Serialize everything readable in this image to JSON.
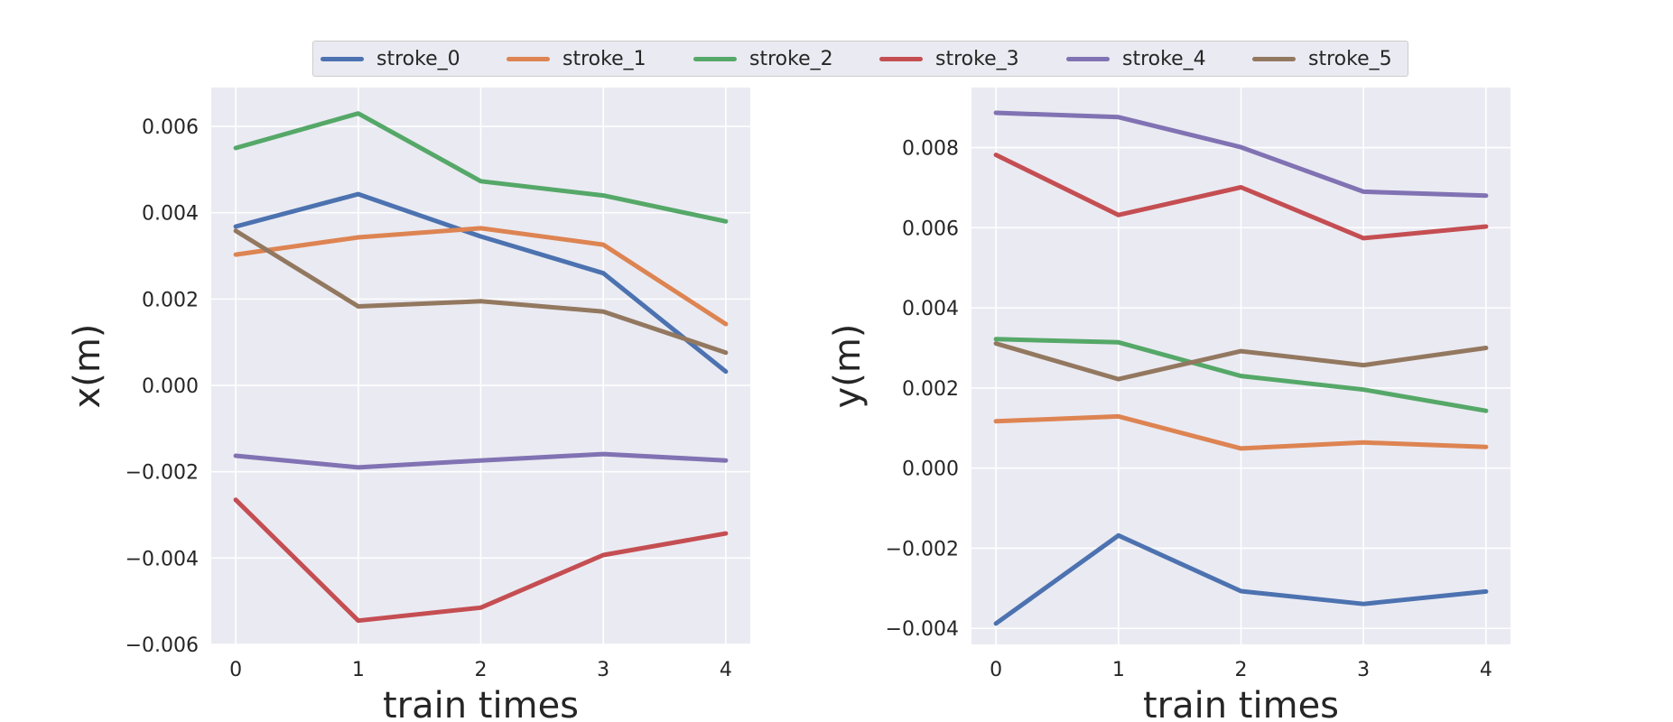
{
  "legend": {
    "placement": "top-center",
    "entries": [
      "stroke_0",
      "stroke_1",
      "stroke_2",
      "stroke_3",
      "stroke_4",
      "stroke_5"
    ]
  },
  "colors": {
    "stroke_0": "#4c72b0",
    "stroke_1": "#dd8452",
    "stroke_2": "#55a868",
    "stroke_3": "#c44e52",
    "stroke_4": "#8172b3",
    "stroke_5": "#937860",
    "axes_bg": "#eaeaf2",
    "grid": "#ffffff"
  },
  "chart_data": [
    {
      "type": "line",
      "xlabel": "train times",
      "ylabel": "x(m)",
      "grid": true,
      "x": [
        0,
        1,
        2,
        3,
        4
      ],
      "xticks": [
        0,
        1,
        2,
        3,
        4
      ],
      "xlim": [
        -0.2,
        4.2
      ],
      "ylim": [
        -0.006,
        0.0069
      ],
      "yticks": [
        -0.006,
        -0.004,
        -0.002,
        0.0,
        0.002,
        0.004,
        0.006
      ],
      "ytick_labels": [
        "−0.006",
        "−0.004",
        "−0.002",
        "0.000",
        "0.002",
        "0.004",
        "0.006"
      ],
      "series": [
        {
          "name": "stroke_0",
          "values": [
            0.00368,
            0.00443,
            0.00345,
            0.0026,
            0.00032
          ]
        },
        {
          "name": "stroke_1",
          "values": [
            0.00303,
            0.00343,
            0.00364,
            0.00326,
            0.00142
          ]
        },
        {
          "name": "stroke_2",
          "values": [
            0.0055,
            0.0063,
            0.00473,
            0.0044,
            0.0038
          ]
        },
        {
          "name": "stroke_3",
          "values": [
            -0.00265,
            -0.00545,
            -0.00515,
            -0.00393,
            -0.00343
          ]
        },
        {
          "name": "stroke_4",
          "values": [
            -0.00163,
            -0.0019,
            -0.00174,
            -0.00159,
            -0.00174
          ]
        },
        {
          "name": "stroke_5",
          "values": [
            0.00358,
            0.00183,
            0.00195,
            0.00171,
            0.00076
          ]
        }
      ]
    },
    {
      "type": "line",
      "xlabel": "train times",
      "ylabel": "y(m)",
      "grid": true,
      "x": [
        0,
        1,
        2,
        3,
        4
      ],
      "xticks": [
        0,
        1,
        2,
        3,
        4
      ],
      "xlim": [
        -0.2,
        4.2
      ],
      "ylim": [
        -0.0044,
        0.0095
      ],
      "yticks": [
        -0.004,
        -0.002,
        0.0,
        0.002,
        0.004,
        0.006,
        0.008
      ],
      "ytick_labels": [
        "−0.004",
        "−0.002",
        "0.000",
        "0.002",
        "0.004",
        "0.006",
        "0.008"
      ],
      "series": [
        {
          "name": "stroke_0",
          "values": [
            -0.00388,
            -0.00168,
            -0.00307,
            -0.00339,
            -0.00308
          ]
        },
        {
          "name": "stroke_1",
          "values": [
            0.00117,
            0.00129,
            0.00049,
            0.00064,
            0.00053
          ]
        },
        {
          "name": "stroke_2",
          "values": [
            0.00322,
            0.00314,
            0.0023,
            0.00196,
            0.00143
          ]
        },
        {
          "name": "stroke_3",
          "values": [
            0.00782,
            0.00632,
            0.00701,
            0.00574,
            0.00603
          ]
        },
        {
          "name": "stroke_4",
          "values": [
            0.00887,
            0.00876,
            0.00801,
            0.0069,
            0.0068
          ]
        },
        {
          "name": "stroke_5",
          "values": [
            0.00311,
            0.00222,
            0.00292,
            0.00257,
            0.003
          ]
        }
      ]
    }
  ]
}
